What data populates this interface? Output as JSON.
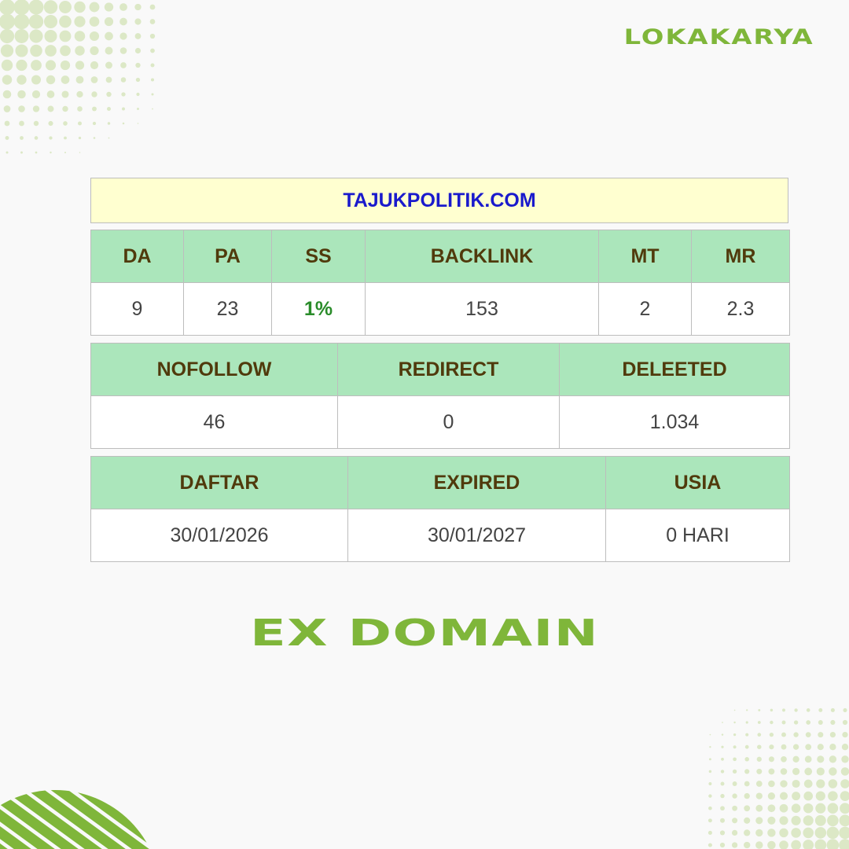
{
  "brand": "LOKAKARYA",
  "domain_title": "TAJUKPOLITIK.COM",
  "metrics": {
    "headers": [
      "DA",
      "PA",
      "SS",
      "BACKLINK",
      "MT",
      "MR"
    ],
    "values": [
      "9",
      "23",
      "1%",
      "153",
      "2",
      "2.3"
    ]
  },
  "links": {
    "headers": [
      "NOFOLLOW",
      "REDIRECT",
      "DELEETED"
    ],
    "values": [
      "46",
      "0",
      "1.034"
    ]
  },
  "dates": {
    "headers": [
      "DAFTAR",
      "EXPIRED",
      "USIA"
    ],
    "values": [
      "30/01/2026",
      "30/01/2027",
      "0 HARI"
    ]
  },
  "headline": "EX DOMAIN",
  "colors": {
    "brand_green": "#7fb63a",
    "dot_green": "#dce8c6",
    "header_bg": "#abe6bb",
    "title_bg": "#ffffd0",
    "title_text": "#1a1acc",
    "ss_green": "#2a8c2a"
  }
}
